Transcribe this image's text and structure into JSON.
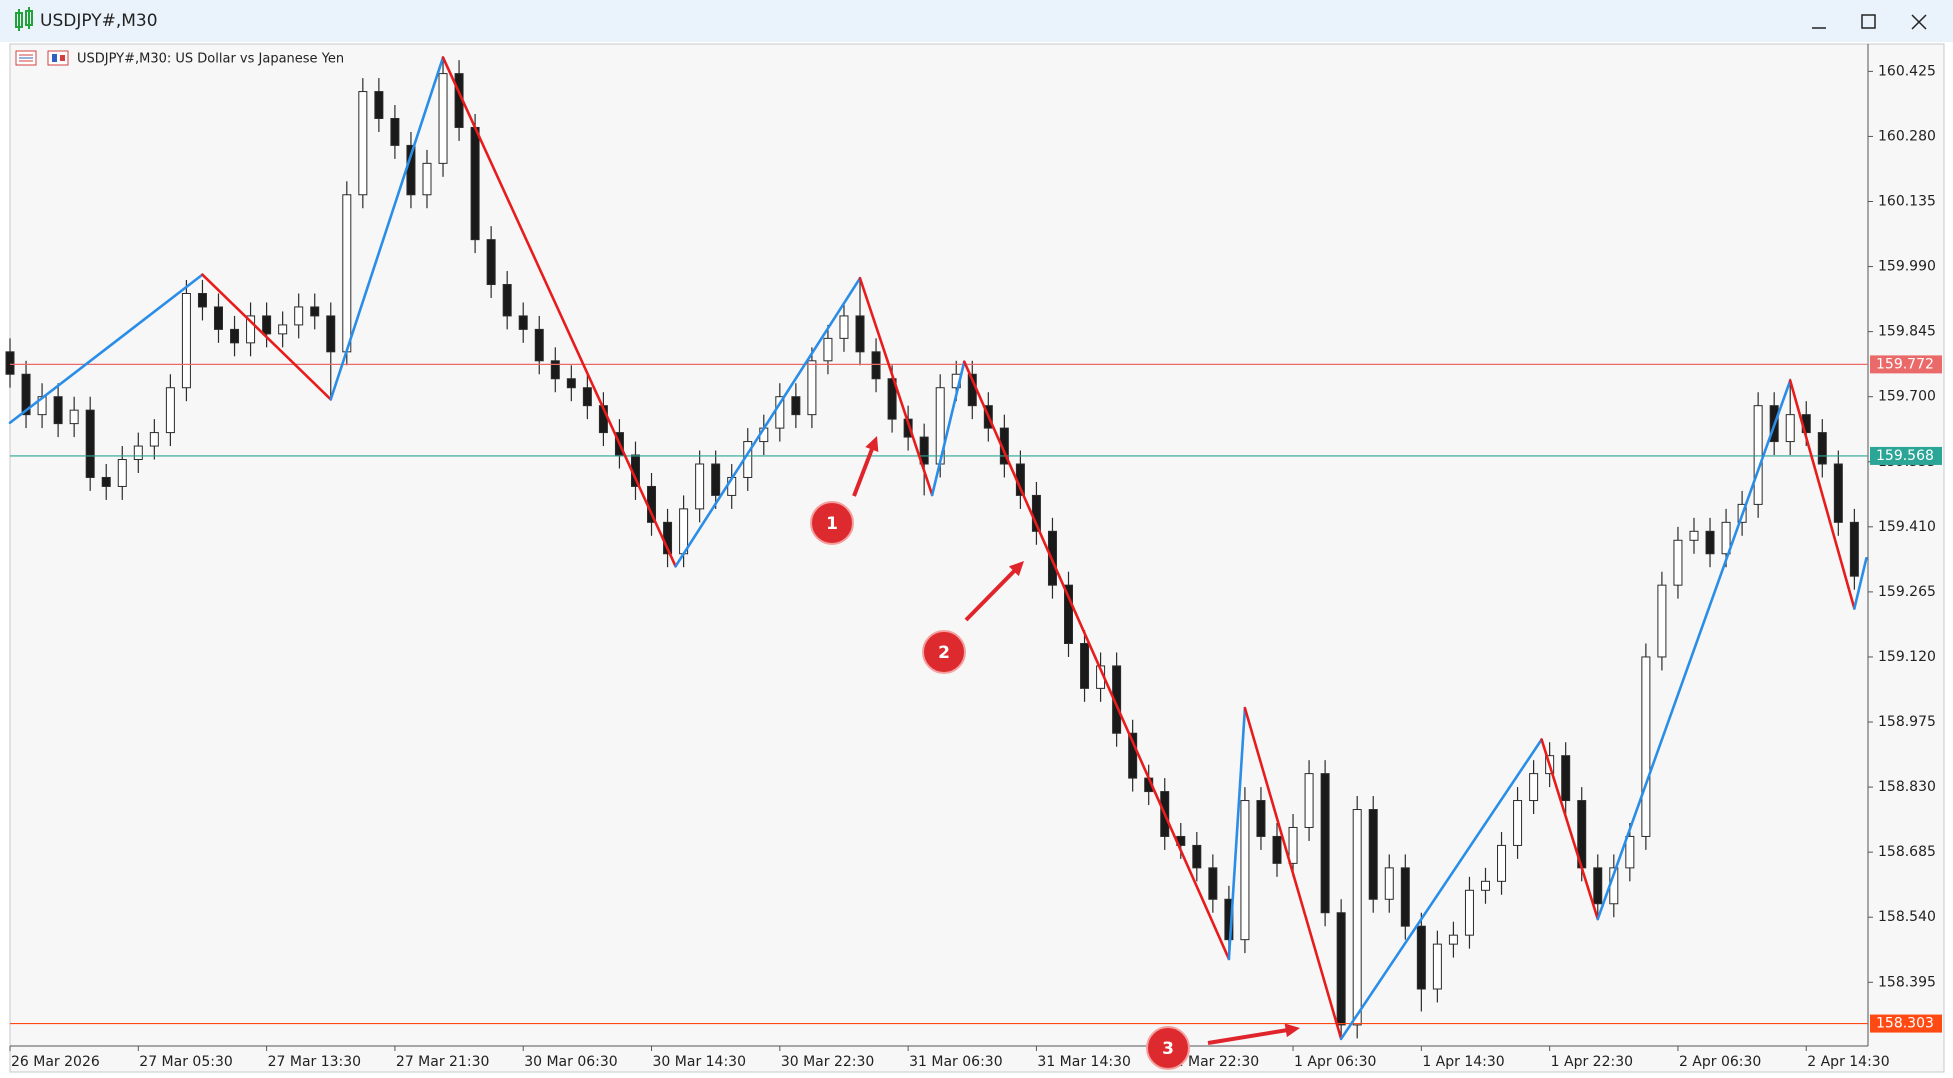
{
  "window_title": "USDJPY#,M30",
  "chart_data": {
    "type": "candlestick",
    "title": "USDJPY#,M30:  US Dollar vs Japanese Yen",
    "xlim": [
      0,
      231.7
    ],
    "ylim": [
      158.253,
      160.486
    ],
    "xticks": [
      {
        "value": 0,
        "label": "26 Mar 2026"
      },
      {
        "value": 16,
        "label": "27 Mar 05:30"
      },
      {
        "value": 32,
        "label": "27 Mar 13:30"
      },
      {
        "value": 48,
        "label": "27 Mar 21:30"
      },
      {
        "value": 64,
        "label": "30 Mar 06:30"
      },
      {
        "value": 80,
        "label": "30 Mar 14:30"
      },
      {
        "value": 96,
        "label": "30 Mar 22:30"
      },
      {
        "value": 112,
        "label": "31 Mar 06:30"
      },
      {
        "value": 128,
        "label": "31 Mar 14:30"
      },
      {
        "value": 144,
        "label": "31 Mar 22:30"
      },
      {
        "value": 160,
        "label": "1 Apr 06:30"
      },
      {
        "value": 176,
        "label": "1 Apr 14:30"
      },
      {
        "value": 192,
        "label": "1 Apr 22:30"
      },
      {
        "value": 208,
        "label": "2 Apr 06:30"
      },
      {
        "value": 224,
        "label": "2 Apr 14:30"
      }
    ],
    "yticks": [
      158.395,
      {
        "value": 158.54,
        "label": "158.540"
      },
      158.685,
      {
        "value": 158.83,
        "label": "158.830"
      },
      158.975,
      {
        "value": 159.12,
        "label": "159.120"
      },
      159.265,
      {
        "value": 159.41,
        "label": "159.410"
      },
      159.555,
      {
        "value": 159.7,
        "label": "159.700"
      },
      159.845,
      {
        "value": 159.99,
        "label": "159.990"
      },
      160.135,
      {
        "value": 160.28,
        "label": "160.280"
      },
      160.425
    ],
    "up_color": "#ffffff",
    "down_color": "#1a1a1a",
    "outline_color": "#2b2b2b",
    "x": [
      0,
      2,
      4,
      6,
      8,
      10,
      12,
      14,
      16,
      18,
      20,
      22,
      24,
      26,
      28,
      30,
      32,
      34,
      36,
      38,
      40,
      42,
      44,
      46,
      48,
      50,
      52,
      54,
      56,
      58,
      60,
      62,
      64,
      66,
      68,
      70,
      72,
      74,
      76,
      78,
      80,
      82,
      84,
      86,
      88,
      90,
      92,
      94,
      96,
      98,
      100,
      102,
      104,
      106,
      108,
      110,
      112,
      114,
      116,
      118,
      120,
      122,
      124,
      126,
      128,
      130,
      132,
      134,
      136,
      138,
      140,
      142,
      144,
      146,
      148,
      150,
      152,
      154,
      156,
      158,
      160,
      162,
      164,
      166,
      168,
      170,
      172,
      174,
      176,
      178,
      180,
      182,
      184,
      186,
      188,
      190,
      192,
      194,
      196,
      198,
      200,
      202,
      204,
      206,
      208,
      210,
      212,
      214,
      216,
      218,
      220,
      222,
      224,
      226,
      228,
      230
    ],
    "open": [
      159.8,
      159.75,
      159.66,
      159.7,
      159.64,
      159.67,
      159.52,
      159.5,
      159.56,
      159.59,
      159.62,
      159.72,
      159.93,
      159.9,
      159.85,
      159.82,
      159.88,
      159.84,
      159.86,
      159.9,
      159.88,
      159.8,
      160.15,
      160.38,
      160.32,
      160.26,
      160.15,
      160.22,
      160.42,
      160.3,
      160.05,
      159.95,
      159.88,
      159.85,
      159.78,
      159.74,
      159.72,
      159.68,
      159.62,
      159.57,
      159.5,
      159.42,
      159.35,
      159.45,
      159.55,
      159.48,
      159.52,
      159.6,
      159.63,
      159.7,
      159.66,
      159.78,
      159.83,
      159.88,
      159.8,
      159.74,
      159.65,
      159.61,
      159.55,
      159.72,
      159.75,
      159.68,
      159.63,
      159.55,
      159.48,
      159.4,
      159.28,
      159.15,
      159.05,
      159.1,
      158.95,
      158.85,
      158.82,
      158.72,
      158.7,
      158.65,
      158.58,
      158.49,
      158.8,
      158.72,
      158.66,
      158.74,
      158.86,
      158.55,
      158.3,
      158.78,
      158.58,
      158.65,
      158.52,
      158.38,
      158.48,
      158.5,
      158.6,
      158.62,
      158.7,
      158.8,
      158.86,
      158.9,
      158.8,
      158.65,
      158.57,
      158.65,
      158.72,
      159.12,
      159.28,
      159.38,
      159.4,
      159.35,
      159.42,
      159.46,
      159.68,
      159.6,
      159.66,
      159.62,
      159.55,
      159.42
    ],
    "high": [
      159.83,
      159.78,
      159.73,
      159.73,
      159.7,
      159.7,
      159.55,
      159.59,
      159.62,
      159.65,
      159.75,
      159.96,
      159.96,
      159.93,
      159.88,
      159.91,
      159.91,
      159.89,
      159.93,
      159.93,
      159.91,
      160.18,
      160.41,
      160.41,
      160.35,
      160.29,
      160.25,
      160.45,
      160.45,
      160.33,
      160.08,
      159.98,
      159.91,
      159.88,
      159.81,
      159.77,
      159.75,
      159.71,
      159.65,
      159.6,
      159.53,
      159.45,
      159.48,
      159.58,
      159.58,
      159.55,
      159.63,
      159.66,
      159.73,
      159.73,
      159.81,
      159.86,
      159.91,
      159.96,
      159.83,
      159.77,
      159.68,
      159.64,
      159.75,
      159.78,
      159.78,
      159.71,
      159.66,
      159.58,
      159.51,
      159.43,
      159.31,
      159.18,
      159.13,
      159.13,
      158.98,
      158.88,
      158.85,
      158.75,
      158.73,
      158.68,
      158.61,
      158.83,
      158.83,
      158.75,
      158.77,
      158.89,
      158.89,
      158.58,
      158.81,
      158.81,
      158.68,
      158.68,
      158.55,
      158.51,
      158.53,
      158.63,
      158.65,
      158.73,
      158.83,
      158.89,
      158.93,
      158.93,
      158.83,
      158.68,
      158.68,
      158.75,
      159.15,
      159.31,
      159.41,
      159.43,
      159.43,
      159.45,
      159.49,
      159.71,
      159.71,
      159.74,
      159.69,
      159.65,
      159.58,
      159.45
    ],
    "low": [
      159.72,
      159.63,
      159.63,
      159.61,
      159.61,
      159.49,
      159.47,
      159.47,
      159.53,
      159.56,
      159.59,
      159.69,
      159.87,
      159.82,
      159.79,
      159.79,
      159.81,
      159.81,
      159.83,
      159.85,
      159.7,
      159.77,
      160.12,
      160.29,
      160.23,
      160.12,
      160.12,
      160.19,
      160.27,
      160.02,
      159.92,
      159.85,
      159.82,
      159.75,
      159.71,
      159.69,
      159.65,
      159.59,
      159.54,
      159.47,
      159.39,
      159.32,
      159.32,
      159.42,
      159.45,
      159.45,
      159.49,
      159.57,
      159.6,
      159.63,
      159.63,
      159.75,
      159.8,
      159.77,
      159.71,
      159.62,
      159.58,
      159.48,
      159.52,
      159.69,
      159.65,
      159.6,
      159.52,
      159.45,
      159.37,
      159.25,
      159.12,
      159.02,
      159.02,
      158.92,
      158.82,
      158.79,
      158.69,
      158.67,
      158.62,
      158.55,
      158.45,
      158.46,
      158.69,
      158.63,
      158.63,
      158.71,
      158.52,
      158.27,
      158.27,
      158.55,
      158.55,
      158.49,
      158.33,
      158.35,
      158.45,
      158.47,
      158.57,
      158.59,
      158.67,
      158.77,
      158.83,
      158.77,
      158.62,
      158.54,
      158.54,
      158.62,
      158.69,
      159.09,
      159.25,
      159.35,
      159.32,
      159.32,
      159.39,
      159.43,
      159.57,
      159.57,
      159.59,
      159.52,
      159.39,
      159.27
    ],
    "close": [
      159.75,
      159.66,
      159.7,
      159.64,
      159.67,
      159.52,
      159.5,
      159.56,
      159.59,
      159.62,
      159.72,
      159.93,
      159.9,
      159.85,
      159.82,
      159.88,
      159.84,
      159.86,
      159.9,
      159.88,
      159.8,
      160.15,
      160.38,
      160.32,
      160.26,
      160.15,
      160.22,
      160.42,
      160.3,
      160.05,
      159.95,
      159.88,
      159.85,
      159.78,
      159.74,
      159.72,
      159.68,
      159.62,
      159.57,
      159.5,
      159.42,
      159.35,
      159.45,
      159.55,
      159.48,
      159.52,
      159.6,
      159.63,
      159.7,
      159.66,
      159.78,
      159.83,
      159.88,
      159.8,
      159.74,
      159.65,
      159.61,
      159.55,
      159.72,
      159.75,
      159.68,
      159.63,
      159.55,
      159.48,
      159.4,
      159.28,
      159.15,
      159.05,
      159.1,
      158.95,
      158.85,
      158.82,
      158.72,
      158.7,
      158.65,
      158.58,
      158.49,
      158.8,
      158.72,
      158.66,
      158.74,
      158.86,
      158.55,
      158.3,
      158.78,
      158.58,
      158.65,
      158.52,
      158.38,
      158.48,
      158.5,
      158.6,
      158.62,
      158.7,
      158.8,
      158.86,
      158.9,
      158.8,
      158.65,
      158.57,
      158.65,
      158.72,
      159.12,
      159.28,
      159.38,
      159.4,
      159.35,
      159.42,
      159.46,
      159.68,
      159.6,
      159.66,
      159.62,
      159.55,
      159.42,
      159.3
    ],
    "zigzag": {
      "up_color": "#2a8de8",
      "down_color": "#e81c1c",
      "x": [
        0,
        24,
        40,
        54,
        83,
        106,
        115,
        119,
        152,
        154,
        166,
        191,
        198,
        222,
        230,
        231.5
      ],
      "values": [
        159.642,
        159.972,
        159.694,
        160.456,
        159.322,
        159.964,
        159.481,
        159.778,
        158.447,
        159.006,
        158.269,
        158.936,
        158.536,
        159.736,
        159.228,
        159.34
      ]
    },
    "levels": [
      {
        "value": 159.772,
        "color": "#ea6a6a"
      },
      {
        "value": 159.568,
        "color": "#2aa596"
      },
      {
        "value": 158.303,
        "color": "#ff4a14"
      }
    ],
    "annotations": [
      {
        "label": "1"
      },
      {
        "label": "2"
      },
      {
        "label": "3"
      }
    ]
  }
}
